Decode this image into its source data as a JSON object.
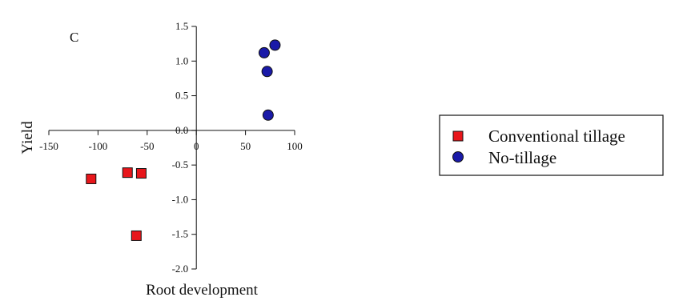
{
  "chart_data": {
    "type": "scatter",
    "panel_label": "C",
    "xlabel": "Root development",
    "ylabel": "Yield",
    "xlim": [
      -150,
      100
    ],
    "ylim": [
      -2.0,
      1.5
    ],
    "xticks": [
      -150,
      -100,
      -50,
      0,
      50,
      100
    ],
    "yticks": [
      1.5,
      1.0,
      0.5,
      0.0,
      -0.5,
      -1.0,
      -1.5,
      -2.0
    ],
    "xtick_labels": [
      "-150",
      "-100",
      "-50",
      "0",
      "50",
      "100"
    ],
    "ytick_labels": [
      "1.5",
      "1.0",
      "0.5",
      "0.0",
      "-0.5",
      "-1.0",
      "-1.5",
      "-2.0"
    ],
    "grid": false,
    "legend_position": "right",
    "series": [
      {
        "name": "Conventional tillage",
        "marker": "square",
        "color": "#e8161b",
        "x": [
          -107,
          -70,
          -56,
          -61
        ],
        "y": [
          -0.7,
          -0.61,
          -0.62,
          -1.52
        ]
      },
      {
        "name": "No-tillage",
        "marker": "circle",
        "color": "#1a1aa8",
        "x": [
          80,
          69,
          72,
          73
        ],
        "y": [
          1.23,
          1.12,
          0.85,
          0.22
        ]
      }
    ]
  }
}
